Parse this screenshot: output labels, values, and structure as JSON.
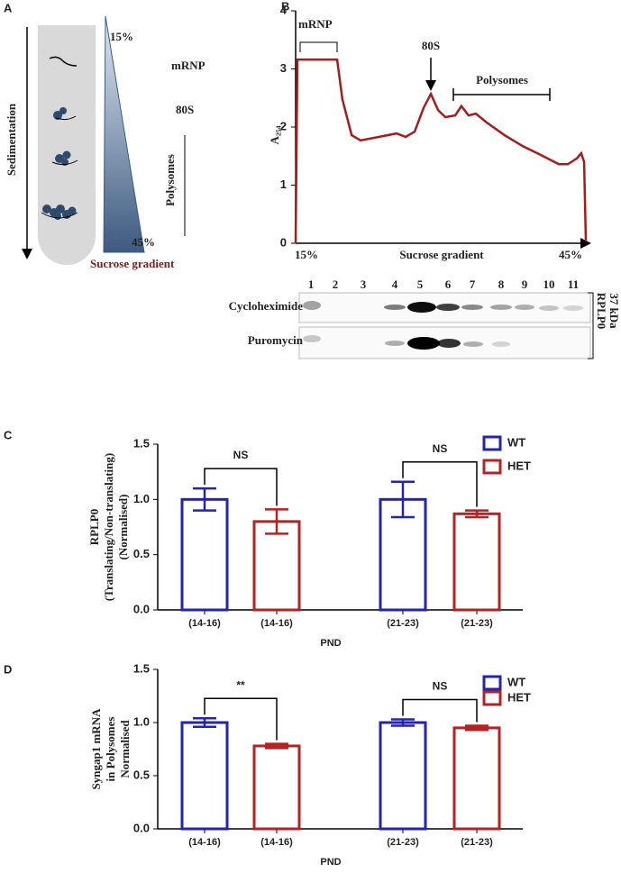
{
  "panel_labels": [
    "A",
    "B",
    "C",
    "D"
  ],
  "diagram": {
    "sedimentation": "Sedimentation",
    "top_percent": "15%",
    "bottom_percent": "45%",
    "mrnp": "mRNP",
    "ribosome": "80S",
    "polysomes": "Polysomes",
    "gradient": "Sucrose gradient"
  },
  "blot": {
    "lanes": [
      "1",
      "2",
      "3",
      "4",
      "5",
      "6",
      "7",
      "8",
      "9",
      "10",
      "11"
    ],
    "rows": [
      "Cycloheximide",
      "Puromycin"
    ],
    "protein": "RPLP0",
    "size": "37 kDa"
  },
  "chart_data": [
    {
      "type": "line",
      "y_label": "A₂₅₄",
      "x_labels": [
        "15%",
        "Sucrose gradient",
        "45%"
      ],
      "annotations": [
        "mRNP",
        "80S",
        "Polysomes"
      ],
      "xlim": [
        0,
        100
      ],
      "ylim": [
        0,
        4
      ],
      "yticks": [
        0,
        1,
        2,
        3,
        4
      ],
      "series": [
        {
          "color": "#a51c1c",
          "x": [
            0,
            0.6,
            14.3,
            16.1,
            19.3,
            22.4,
            28.6,
            34.8,
            37.9,
            41,
            44.1,
            46.6,
            49.1,
            51.6,
            55,
            57.1,
            59.6,
            62.1,
            65.8,
            72,
            78.3,
            84.5,
            90.7,
            93.8,
            96.9,
            98.4,
            99.4,
            100
          ],
          "values": [
            0,
            3.16,
            3.16,
            2.48,
            1.86,
            1.77,
            1.83,
            1.89,
            1.83,
            1.92,
            2.33,
            2.57,
            2.29,
            2.17,
            2.2,
            2.36,
            2.2,
            2.23,
            2.08,
            1.86,
            1.67,
            1.52,
            1.36,
            1.36,
            1.46,
            1.55,
            1.4,
            0.03
          ]
        }
      ]
    },
    {
      "type": "bar",
      "categories": [
        "(14-16)",
        "(14-16)",
        "(21-23)",
        "(21-23)"
      ],
      "x_label": "PND",
      "y_label": [
        "RPLP0",
        "(Translating/Non-translating)",
        "(Normalised)"
      ],
      "ylim": [
        0,
        1.5
      ],
      "yticks": [
        {
          "value": 0,
          "label": "0.0"
        },
        {
          "value": 0.5,
          "label": "0.5"
        },
        {
          "value": 1,
          "label": "1.0"
        },
        {
          "value": 1.5,
          "label": "1.5"
        }
      ],
      "annotations": [
        "NS",
        "NS"
      ],
      "legend": "upper right",
      "series": [
        {
          "name": "WT",
          "color": "#2323b4",
          "values": [
            1.0,
            null,
            1.0,
            null
          ],
          "errors": [
            0.1,
            null,
            0.16,
            null
          ]
        },
        {
          "name": "HET",
          "color": "#b42323",
          "values": [
            null,
            0.8,
            null,
            0.87
          ],
          "errors": [
            null,
            0.11,
            null,
            0.03
          ]
        }
      ]
    },
    {
      "type": "bar",
      "categories": [
        "(14-16)",
        "(14-16)",
        "(21-23)",
        "(21-23)"
      ],
      "x_label": "PND",
      "y_label": [
        "Syngap1 mRNA",
        "in Polysomes",
        "Normalised"
      ],
      "ylim": [
        0,
        1.5
      ],
      "yticks": [
        {
          "value": 0,
          "label": "0.0"
        },
        {
          "value": 0.5,
          "label": "0.5"
        },
        {
          "value": 1,
          "label": "1.0"
        },
        {
          "value": 1.5,
          "label": "1.5"
        }
      ],
      "annotations": [
        "**",
        "NS"
      ],
      "legend": "upper right",
      "series": [
        {
          "name": "WT",
          "color": "#2323b4",
          "values": [
            1.0,
            null,
            1.0,
            null
          ],
          "errors": [
            0.04,
            null,
            0.03,
            null
          ]
        },
        {
          "name": "HET",
          "color": "#b42323",
          "values": [
            null,
            0.78,
            null,
            0.95
          ],
          "errors": [
            null,
            0.02,
            null,
            0.02
          ]
        }
      ]
    }
  ]
}
